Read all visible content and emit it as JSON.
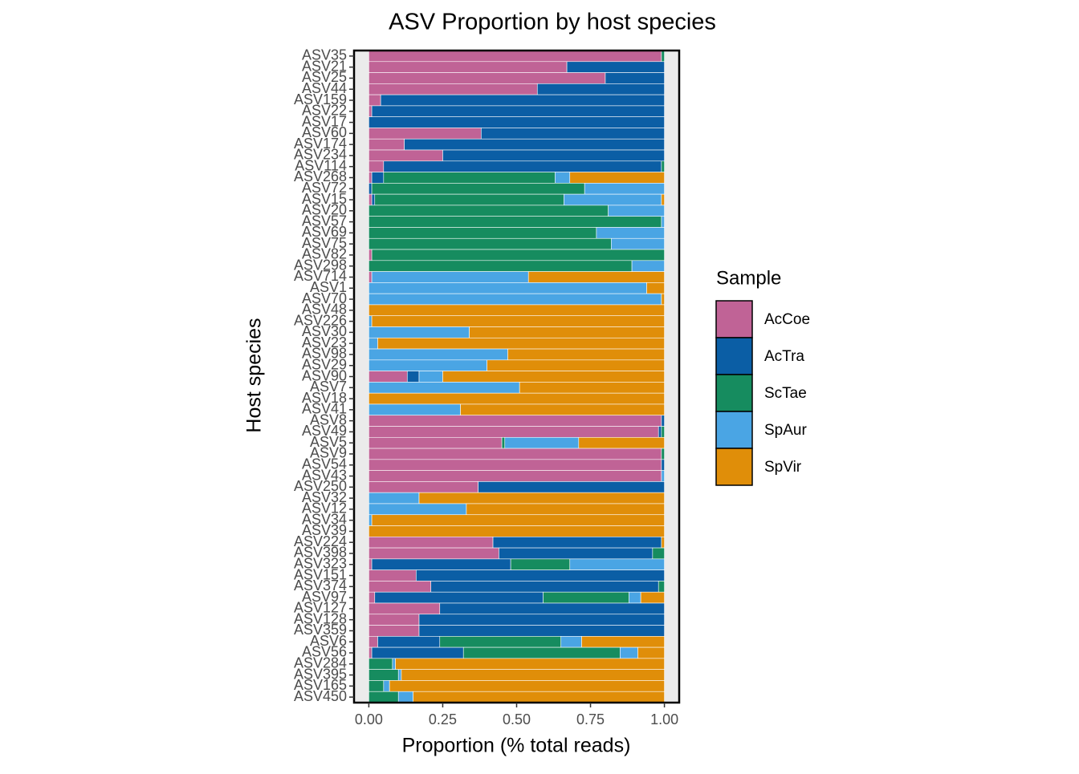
{
  "chart_data": {
    "type": "stacked-hbar",
    "title": "ASV Proportion by host species",
    "x_label": "Proportion (% total reads)",
    "y_label": "Host species",
    "legend_title": "Sample",
    "categories": [
      "ASV35",
      "ASV21",
      "ASV25",
      "ASV44",
      "ASV159",
      "ASV22",
      "ASV17",
      "ASV60",
      "ASV174",
      "ASV234",
      "ASV114",
      "ASV268",
      "ASV72",
      "ASV15",
      "ASV20",
      "ASV57",
      "ASV69",
      "ASV75",
      "ASV82",
      "ASV298",
      "ASV714",
      "ASV1",
      "ASV70",
      "ASV48",
      "ASV226",
      "ASV30",
      "ASV23",
      "ASV98",
      "ASV29",
      "ASV90",
      "ASV7",
      "ASV18",
      "ASV41",
      "ASV8",
      "ASV49",
      "ASV5",
      "ASV9",
      "ASV54",
      "ASV43",
      "ASV250",
      "ASV32",
      "ASV12",
      "ASV34",
      "ASV39",
      "ASV224",
      "ASV398",
      "ASV323",
      "ASV151",
      "ASV374",
      "ASV97",
      "ASV127",
      "ASV128",
      "ASV359",
      "ASV6",
      "ASV56",
      "ASV284",
      "ASV395",
      "ASV165",
      "ASV450"
    ],
    "series": [
      {
        "name": "AcCoe",
        "color": "#c06396",
        "values": [
          0.99,
          0.67,
          0.8,
          0.57,
          0.04,
          0.01,
          0,
          0.38,
          0.12,
          0.25,
          0.05,
          0.01,
          0,
          0.01,
          0,
          0,
          0,
          0,
          0.01,
          0,
          0.01,
          0,
          0,
          0,
          0,
          0,
          0,
          0,
          0,
          0.13,
          0,
          0,
          0,
          0.99,
          0.98,
          0.45,
          0.99,
          0.99,
          0.99,
          0.37,
          0,
          0,
          0,
          0,
          0.42,
          0.44,
          0.01,
          0.16,
          0.21,
          0.02,
          0.24,
          0.17,
          0.17,
          0.03,
          0.01,
          0,
          0,
          0,
          0
        ]
      },
      {
        "name": "AcTra",
        "color": "#0b5ea5",
        "values": [
          0,
          0.33,
          0.2,
          0.43,
          0.96,
          0.99,
          1,
          0.62,
          0.88,
          0.75,
          0.94,
          0.04,
          0.01,
          0.01,
          0,
          0,
          0,
          0,
          0,
          0,
          0,
          0,
          0,
          0,
          0,
          0,
          0,
          0,
          0,
          0.04,
          0,
          0,
          0,
          0.01,
          0.01,
          0,
          0,
          0.01,
          0,
          0.63,
          0,
          0,
          0,
          0,
          0.57,
          0.52,
          0.47,
          0.84,
          0.77,
          0.57,
          0.76,
          0.83,
          0.83,
          0.21,
          0.31,
          0,
          0,
          0,
          0
        ]
      },
      {
        "name": "ScTae",
        "color": "#168c5f",
        "values": [
          0.01,
          0,
          0,
          0,
          0,
          0,
          0,
          0,
          0,
          0,
          0.01,
          0.58,
          0.72,
          0.64,
          0.81,
          0.99,
          0.77,
          0.82,
          0.99,
          0.89,
          0,
          0,
          0,
          0,
          0,
          0,
          0,
          0,
          0,
          0,
          0,
          0,
          0,
          0,
          0.01,
          0.01,
          0.01,
          0,
          0,
          0,
          0,
          0,
          0,
          0,
          0,
          0.04,
          0.2,
          0,
          0.02,
          0.29,
          0,
          0,
          0,
          0.41,
          0.53,
          0.08,
          0.1,
          0.05,
          0.1
        ]
      },
      {
        "name": "SpAur",
        "color": "#4aa5e4",
        "values": [
          0,
          0,
          0,
          0,
          0,
          0,
          0,
          0,
          0,
          0,
          0,
          0.05,
          0.27,
          0.33,
          0.19,
          0.01,
          0.23,
          0.18,
          0,
          0.11,
          0.53,
          0.94,
          0.99,
          0,
          0.01,
          0.34,
          0.03,
          0.47,
          0.4,
          0.08,
          0.51,
          0,
          0.31,
          0,
          0,
          0.25,
          0,
          0,
          0.01,
          0,
          0.17,
          0.33,
          0.01,
          0,
          0,
          0,
          0.32,
          0,
          0,
          0.04,
          0,
          0,
          0,
          0.07,
          0.06,
          0.01,
          0.01,
          0.02,
          0.05
        ]
      },
      {
        "name": "SpVir",
        "color": "#e08e09",
        "values": [
          0,
          0,
          0,
          0,
          0,
          0,
          0,
          0,
          0,
          0,
          0,
          0.32,
          0,
          0.01,
          0,
          0,
          0,
          0,
          0,
          0,
          0.46,
          0.06,
          0.01,
          1,
          0.99,
          0.66,
          0.97,
          0.53,
          0.6,
          0.75,
          0.49,
          1,
          0.69,
          0,
          0,
          0.29,
          0,
          0,
          0,
          0,
          0.83,
          0.67,
          0.99,
          1,
          0.01,
          0,
          0,
          0,
          0,
          0.08,
          0,
          0,
          0,
          0.28,
          0.09,
          0.91,
          0.89,
          0.93,
          0.85
        ]
      }
    ],
    "xlim": [
      -0.05,
      1.05
    ],
    "xticks": [
      {
        "value": 0,
        "label": "0.00"
      },
      {
        "value": 0.25,
        "label": "0.25"
      },
      {
        "value": 0.5,
        "label": "0.50"
      },
      {
        "value": 0.75,
        "label": "0.75"
      },
      {
        "value": 1,
        "label": "1.00"
      }
    ]
  }
}
